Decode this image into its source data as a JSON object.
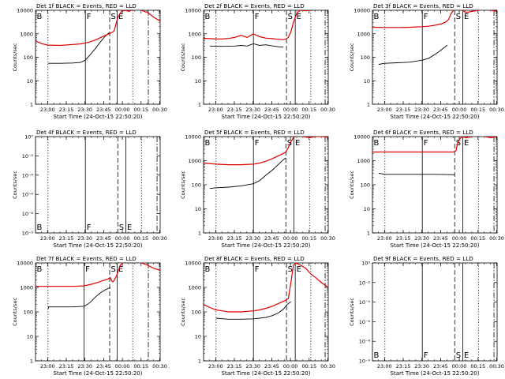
{
  "colors": {
    "events": "#000000",
    "lld": "#e00000",
    "axis": "#000000"
  },
  "common": {
    "xlabel": "Start Time (24-Oct-15 22:50:20)",
    "ylabel": "Counts/sec",
    "x_ticks": [
      "23:00",
      "23:15",
      "23:30",
      "23:45",
      "00:00",
      "00:15",
      "00:30"
    ],
    "y_ticks_count": [
      "1",
      "10",
      "100",
      "1000",
      "10000"
    ],
    "y_ticks_empty": [
      "10⁻⁹",
      "10⁻⁸",
      "10⁻⁶",
      "10⁻⁴",
      "10⁻²",
      "10⁰"
    ]
  },
  "chart_data": [
    {
      "type": "line",
      "title": "Det 1f BLACK = Events, RED = LLD",
      "xlabel": "Start Time (24-Oct-15 22:50:20)",
      "ylabel": "Counts/sec",
      "x_unit": "minutes after 22:50:20",
      "y_scale": "log",
      "ylim": [
        1,
        10000
      ],
      "xlim": [
        0,
        100
      ],
      "series": [
        {
          "name": "Events",
          "color": "#000000",
          "x": [
            10,
            20,
            30,
            36,
            40,
            44,
            48,
            52,
            56,
            59
          ],
          "y": [
            55,
            55,
            57,
            60,
            75,
            130,
            230,
            450,
            800,
            1100
          ]
        },
        {
          "name": "LLD",
          "color": "#e00000",
          "x": [
            0,
            5,
            10,
            20,
            30,
            36,
            40,
            44,
            48,
            52,
            56,
            59,
            61,
            63,
            64,
            66,
            69,
            72,
            75,
            80,
            85,
            90,
            95,
            100
          ],
          "y": [
            500,
            380,
            330,
            320,
            350,
            370,
            400,
            460,
            540,
            680,
            850,
            1000,
            1100,
            1300,
            2000,
            5000,
            9000,
            10000,
            9000,
            12000,
            10000,
            8000,
            5000,
            3500
          ]
        }
      ],
      "markers": [
        {
          "label": "B",
          "x": 0,
          "style": "dotted"
        },
        {
          "label": "",
          "x": 10,
          "style": "dotted"
        },
        {
          "label": "F",
          "x": 40,
          "style": "solid"
        },
        {
          "label": "S",
          "x": 59.5,
          "style": "dashed"
        },
        {
          "label": "E",
          "x": 65.5,
          "style": "solid"
        },
        {
          "label": "",
          "x": 78,
          "style": "dotted"
        },
        {
          "label": "",
          "x": 90.5,
          "style": "dashdot"
        }
      ]
    },
    {
      "type": "line",
      "title": "Det 2f BLACK = Events, RED = LLD",
      "xlabel": "Start Time (24-Oct-15 22:50:20)",
      "ylabel": "Counts/sec",
      "x_unit": "minutes after 22:50:20",
      "y_scale": "log",
      "ylim": [
        1,
        10000
      ],
      "xlim": [
        0,
        100
      ],
      "series": [
        {
          "name": "Events",
          "color": "#000000",
          "x": [
            5,
            15,
            25,
            30,
            35,
            40,
            45,
            50,
            56,
            60,
            64
          ],
          "y": [
            300,
            290,
            300,
            320,
            300,
            380,
            320,
            340,
            300,
            280,
            270
          ]
        },
        {
          "name": "LLD",
          "color": "#e00000",
          "x": [
            0,
            5,
            10,
            15,
            20,
            25,
            30,
            35,
            40,
            45,
            50,
            55,
            60,
            64,
            66,
            68,
            70,
            72,
            75,
            78,
            82,
            85
          ],
          "y": [
            640,
            620,
            600,
            600,
            630,
            700,
            850,
            700,
            1000,
            750,
            650,
            620,
            580,
            560,
            600,
            700,
            1200,
            3000,
            8000,
            10000,
            9500,
            10000
          ]
        }
      ],
      "markers": [
        {
          "label": "B",
          "x": 0,
          "style": "dotted"
        },
        {
          "label": "",
          "x": 10,
          "style": "dotted"
        },
        {
          "label": "F",
          "x": 40,
          "style": "solid"
        },
        {
          "label": "S",
          "x": 66.5,
          "style": "dashed"
        },
        {
          "label": "E",
          "x": 73.5,
          "style": "solid"
        },
        {
          "label": "",
          "x": 86,
          "style": "dotted"
        },
        {
          "label": "",
          "x": 97.5,
          "style": "dashdot"
        }
      ]
    },
    {
      "type": "line",
      "title": "Det 3f BLACK = Events, RED = LLD",
      "xlabel": "Start Time (24-Oct-15 22:50:20)",
      "ylabel": "Counts/sec",
      "x_unit": "minutes after 22:50:20",
      "y_scale": "log",
      "ylim": [
        1,
        10000
      ],
      "xlim": [
        0,
        100
      ],
      "series": [
        {
          "name": "Events",
          "color": "#000000",
          "x": [
            5,
            10,
            20,
            30,
            40,
            45,
            50,
            55,
            60
          ],
          "y": [
            50,
            55,
            58,
            62,
            75,
            90,
            130,
            200,
            330
          ]
        },
        {
          "name": "LLD",
          "color": "#e00000",
          "x": [
            0,
            10,
            20,
            30,
            40,
            45,
            50,
            55,
            59,
            61,
            63,
            65,
            68,
            72,
            75,
            80,
            85,
            90,
            95,
            100
          ],
          "y": [
            1900,
            1850,
            1850,
            1900,
            2000,
            2100,
            2300,
            2600,
            3200,
            4000,
            7000,
            10000,
            12000,
            10000,
            8000,
            9000,
            10000,
            12000,
            10000,
            9000
          ]
        }
      ],
      "markers": [
        {
          "label": "B",
          "x": 0,
          "style": "dotted"
        },
        {
          "label": "",
          "x": 10,
          "style": "dotted"
        },
        {
          "label": "F",
          "x": 40,
          "style": "solid"
        },
        {
          "label": "S",
          "x": 66,
          "style": "dashed"
        },
        {
          "label": "E",
          "x": 72.5,
          "style": "solid"
        },
        {
          "label": "",
          "x": 85,
          "style": "dotted"
        },
        {
          "label": "",
          "x": 97.5,
          "style": "dashdot"
        }
      ]
    },
    {
      "type": "line",
      "title": "Det 4f BLACK = Events, RED = LLD",
      "xlabel": "Start Time (24-Oct-15 22:50:20)",
      "ylabel": "Counts/sec",
      "x_unit": "minutes after 22:50:20",
      "y_scale": "empty",
      "series": [],
      "markers": [
        {
          "label": "B",
          "x": 0,
          "style": "dotted"
        },
        {
          "label": "",
          "x": 10,
          "style": "dotted"
        },
        {
          "label": "F",
          "x": 40,
          "style": "solid"
        },
        {
          "label": "S",
          "x": 66,
          "style": "dashed"
        },
        {
          "label": "E",
          "x": 72.5,
          "style": "solid"
        },
        {
          "label": "",
          "x": 85,
          "style": "dotted"
        },
        {
          "label": "",
          "x": 97.5,
          "style": "dashdot"
        }
      ]
    },
    {
      "type": "line",
      "title": "Det 5f BLACK = Events, RED = LLD",
      "xlabel": "Start Time (24-Oct-15 22:50:20)",
      "ylabel": "Counts/sec",
      "x_unit": "minutes after 22:50:20",
      "y_scale": "log",
      "ylim": [
        1,
        10000
      ],
      "xlim": [
        0,
        100
      ],
      "series": [
        {
          "name": "Events",
          "color": "#000000",
          "x": [
            5,
            10,
            20,
            30,
            40,
            45,
            50,
            55,
            60,
            64,
            66
          ],
          "y": [
            70,
            75,
            80,
            90,
            110,
            150,
            250,
            400,
            700,
            1100,
            1300
          ]
        },
        {
          "name": "LLD",
          "color": "#e00000",
          "x": [
            0,
            10,
            20,
            30,
            40,
            45,
            50,
            55,
            60,
            64,
            66,
            68,
            70,
            72,
            75,
            80,
            85,
            90,
            95,
            100
          ],
          "y": [
            800,
            720,
            680,
            680,
            720,
            800,
            950,
            1200,
            1600,
            2000,
            2300,
            3500,
            6000,
            9000,
            12000,
            10000,
            9000,
            10000,
            10000,
            9500
          ]
        }
      ],
      "markers": [
        {
          "label": "B",
          "x": 0,
          "style": "dotted"
        },
        {
          "label": "",
          "x": 10,
          "style": "dotted"
        },
        {
          "label": "F",
          "x": 40,
          "style": "solid"
        },
        {
          "label": "S",
          "x": 66,
          "style": "dashed"
        },
        {
          "label": "E",
          "x": 72.5,
          "style": "solid"
        },
        {
          "label": "",
          "x": 85,
          "style": "dotted"
        },
        {
          "label": "",
          "x": 97.5,
          "style": "dashdot"
        }
      ]
    },
    {
      "type": "line",
      "title": "Det 6f BLACK = Events, RED = LLD",
      "xlabel": "Start Time (24-Oct-15 22:50:20)",
      "ylabel": "Counts/sec",
      "x_unit": "minutes after 22:50:20",
      "y_scale": "log",
      "ylim": [
        1,
        10000
      ],
      "xlim": [
        0,
        100
      ],
      "series": [
        {
          "name": "Events",
          "color": "#000000",
          "x": [
            5,
            10,
            20,
            30,
            40,
            50,
            60,
            66
          ],
          "y": [
            300,
            270,
            270,
            270,
            270,
            270,
            265,
            260
          ]
        },
        {
          "name": "LLD",
          "color": "#e00000",
          "x": [
            0,
            10,
            20,
            30,
            40,
            50,
            60,
            65,
            67,
            68,
            70,
            72,
            75,
            80,
            85,
            90,
            95,
            100
          ],
          "y": [
            2300,
            2300,
            2300,
            2300,
            2300,
            2300,
            2300,
            2300,
            2600,
            4500,
            8000,
            10000,
            9000,
            10000,
            12000,
            10000,
            9000,
            10000
          ]
        }
      ],
      "markers": [
        {
          "label": "B",
          "x": 0,
          "style": "dotted"
        },
        {
          "label": "",
          "x": 10,
          "style": "dotted"
        },
        {
          "label": "F",
          "x": 40,
          "style": "solid"
        },
        {
          "label": "S",
          "x": 66,
          "style": "dashed"
        },
        {
          "label": "E",
          "x": 72.5,
          "style": "solid"
        },
        {
          "label": "",
          "x": 85,
          "style": "dotted"
        },
        {
          "label": "",
          "x": 97.5,
          "style": "dashdot"
        }
      ]
    },
    {
      "type": "line",
      "title": "Det 7f BLACK = Events, RED = LLD",
      "xlabel": "Start Time (24-Oct-15 22:50:20)",
      "ylabel": "Counts/sec",
      "x_unit": "minutes after 22:50:20",
      "y_scale": "log",
      "ylim": [
        1,
        10000
      ],
      "xlim": [
        0,
        100
      ],
      "series": [
        {
          "name": "Events",
          "color": "#000000",
          "x": [
            10,
            10.5,
            20,
            30,
            38,
            40,
            44,
            48,
            52,
            56,
            60
          ],
          "y": [
            130,
            160,
            160,
            160,
            170,
            180,
            250,
            400,
            600,
            800,
            1000
          ]
        },
        {
          "name": "LLD",
          "color": "#e00000",
          "x": [
            0,
            10,
            20,
            30,
            38,
            42,
            46,
            50,
            54,
            58,
            60,
            61,
            62,
            63,
            65,
            68,
            72,
            76,
            80,
            85,
            90,
            95,
            100
          ],
          "y": [
            1100,
            1100,
            1100,
            1100,
            1150,
            1250,
            1400,
            1600,
            1900,
            2200,
            2500,
            1900,
            1700,
            1900,
            3000,
            8000,
            12000,
            10000,
            12000,
            10000,
            8000,
            6000,
            5000
          ]
        }
      ],
      "markers": [
        {
          "label": "B",
          "x": 0,
          "style": "dotted"
        },
        {
          "label": "",
          "x": 10,
          "style": "dotted"
        },
        {
          "label": "F",
          "x": 39,
          "style": "solid"
        },
        {
          "label": "S",
          "x": 59.5,
          "style": "dashed"
        },
        {
          "label": "E",
          "x": 65.5,
          "style": "solid"
        },
        {
          "label": "",
          "x": 78,
          "style": "dotted"
        },
        {
          "label": "",
          "x": 90.5,
          "style": "dashdot"
        }
      ]
    },
    {
      "type": "line",
      "title": "Det 8f BLACK = Events, RED = LLD",
      "xlabel": "Start Time (24-Oct-15 22:50:20)",
      "ylabel": "Counts/sec",
      "x_unit": "minutes after 22:50:20",
      "y_scale": "log",
      "ylim": [
        1,
        10000
      ],
      "xlim": [
        0,
        100
      ],
      "series": [
        {
          "name": "Events",
          "color": "#000000",
          "x": [
            10,
            20,
            30,
            40,
            45,
            50,
            55,
            60,
            64,
            67,
            70
          ],
          "y": [
            55,
            50,
            50,
            52,
            55,
            60,
            70,
            90,
            130,
            200,
            260
          ]
        },
        {
          "name": "LLD",
          "color": "#e00000",
          "x": [
            0,
            5,
            10,
            15,
            20,
            30,
            40,
            45,
            50,
            55,
            60,
            64,
            66,
            68,
            70,
            72,
            74,
            76,
            78,
            82,
            86,
            90,
            95,
            100
          ],
          "y": [
            200,
            150,
            120,
            110,
            100,
            100,
            110,
            120,
            140,
            170,
            220,
            270,
            300,
            350,
            1500,
            8000,
            10000,
            9000,
            8000,
            6000,
            3500,
            2500,
            1500,
            1000
          ]
        }
      ],
      "markers": [
        {
          "label": "B",
          "x": 0,
          "style": "dotted"
        },
        {
          "label": "",
          "x": 10,
          "style": "dotted"
        },
        {
          "label": "F",
          "x": 40,
          "style": "solid"
        },
        {
          "label": "S",
          "x": 66.5,
          "style": "dashed"
        },
        {
          "label": "E",
          "x": 73.5,
          "style": "solid"
        },
        {
          "label": "",
          "x": 86,
          "style": "dotted"
        },
        {
          "label": "",
          "x": 97.5,
          "style": "dashdot"
        }
      ]
    },
    {
      "type": "line",
      "title": "Det 9f BLACK = Events, RED = LLD",
      "xlabel": "Start Time (24-Oct-15 22:50:20)",
      "ylabel": "Counts/sec",
      "x_unit": "minutes after 22:50:20",
      "y_scale": "empty",
      "series": [],
      "markers": [
        {
          "label": "B",
          "x": 0,
          "style": "dotted"
        },
        {
          "label": "",
          "x": 10,
          "style": "dotted"
        },
        {
          "label": "F",
          "x": 40,
          "style": "solid"
        },
        {
          "label": "S",
          "x": 66,
          "style": "dashed"
        },
        {
          "label": "E",
          "x": 72.5,
          "style": "solid"
        },
        {
          "label": "",
          "x": 85,
          "style": "dotted"
        },
        {
          "label": "",
          "x": 97.5,
          "style": "dashdot"
        }
      ]
    }
  ]
}
